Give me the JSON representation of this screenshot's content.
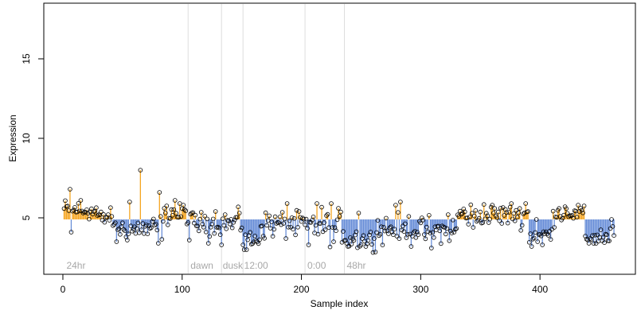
{
  "chart_data": {
    "type": "scatter",
    "title": "",
    "xlabel": "Sample index",
    "ylabel": "Expression",
    "xlim": [
      -16,
      480
    ],
    "ylim": [
      1.45,
      18.5
    ],
    "baseline": 4.9,
    "x_ticks": [
      0,
      100,
      200,
      300,
      400
    ],
    "y_ticks": [
      5,
      10,
      15
    ],
    "grid": false,
    "colors": {
      "above": "#f5a623",
      "below": "#6a8fd8",
      "point_stroke": "#000000",
      "divider": "#dddddd",
      "region_label": "#a8a8a8"
    },
    "dividers": [
      105,
      133,
      151,
      203,
      236
    ],
    "region_labels": [
      {
        "text": "24hr",
        "x": 3
      },
      {
        "text": "dawn",
        "x": 107
      },
      {
        "text": "dusk",
        "x": 134
      },
      {
        "text": "12:00",
        "x": 152
      },
      {
        "text": "0:00",
        "x": 205
      },
      {
        "text": "48hr",
        "x": 238
      }
    ],
    "segments": [
      {
        "x0": 1,
        "x1": 28,
        "base": 5.45,
        "amp": 0.45,
        "hi": [
          [
            6,
            6.8
          ],
          [
            15,
            6.1
          ]
        ],
        "lo": [
          [
            7,
            4.1
          ]
        ]
      },
      {
        "x0": 29,
        "x1": 42,
        "base": 5.0,
        "amp": 0.4,
        "hi": [],
        "lo": []
      },
      {
        "x0": 43,
        "x1": 84,
        "base": 4.3,
        "amp": 0.6,
        "hi": [
          [
            56,
            6.0
          ],
          [
            65,
            8.0
          ],
          [
            81,
            6.6
          ]
        ],
        "lo": [
          [
            45,
            3.5
          ],
          [
            80,
            3.4
          ]
        ]
      },
      {
        "x0": 85,
        "x1": 104,
        "base": 5.3,
        "amp": 0.45,
        "hi": [
          [
            94,
            6.1
          ]
        ],
        "lo": []
      },
      {
        "x0": 105,
        "x1": 132,
        "base": 4.7,
        "amp": 0.5,
        "hi": [
          [
            128,
            5.4
          ]
        ],
        "lo": [
          [
            106,
            3.6
          ],
          [
            122,
            3.4
          ]
        ]
      },
      {
        "x0": 133,
        "x1": 150,
        "base": 4.7,
        "amp": 0.5,
        "hi": [
          [
            148,
            5.3
          ]
        ],
        "lo": [
          [
            133,
            3.3
          ]
        ]
      },
      {
        "x0": 151,
        "x1": 165,
        "base": 3.6,
        "amp": 0.4,
        "hi": [],
        "lo": [
          [
            152,
            3.0
          ],
          [
            154,
            3.0
          ]
        ]
      },
      {
        "x0": 166,
        "x1": 202,
        "base": 4.6,
        "amp": 0.6,
        "hi": [
          [
            188,
            5.9
          ]
        ],
        "lo": []
      },
      {
        "x0": 203,
        "x1": 235,
        "base": 4.5,
        "amp": 0.8,
        "hi": [
          [
            213,
            5.9
          ],
          [
            225,
            5.9
          ]
        ],
        "lo": [
          [
            206,
            3.3
          ],
          [
            227,
            3.5
          ]
        ]
      },
      {
        "x0": 236,
        "x1": 262,
        "base": 3.7,
        "amp": 0.5,
        "hi": [
          [
            248,
            5.3
          ]
        ],
        "lo": [
          [
            239,
            3.2
          ],
          [
            254,
            3.2
          ]
        ]
      },
      {
        "x0": 263,
        "x1": 299,
        "base": 4.3,
        "amp": 0.6,
        "hi": [
          [
            279,
            5.8
          ],
          [
            283,
            6.0
          ]
        ],
        "lo": [
          [
            292,
            3.2
          ]
        ]
      },
      {
        "x0": 300,
        "x1": 330,
        "base": 4.2,
        "amp": 0.6,
        "hi": [
          [
            323,
            5.2
          ]
        ],
        "lo": [
          [
            309,
            3.1
          ]
        ]
      },
      {
        "x0": 331,
        "x1": 390,
        "base": 5.2,
        "amp": 0.5,
        "hi": [
          [
            376,
            5.9
          ],
          [
            388,
            5.9
          ]
        ],
        "lo": [
          [
            344,
            4.4
          ]
        ]
      },
      {
        "x0": 391,
        "x1": 410,
        "base": 3.9,
        "amp": 0.5,
        "hi": [
          [
            397,
            4.9
          ]
        ],
        "lo": [
          [
            393,
            3.2
          ],
          [
            402,
            3.3
          ]
        ]
      },
      {
        "x0": 411,
        "x1": 437,
        "base": 5.3,
        "amp": 0.35,
        "hi": [
          [
            421,
            5.7
          ]
        ],
        "lo": [
          [
            412,
            4.4
          ]
        ]
      },
      {
        "x0": 438,
        "x1": 462,
        "base": 3.8,
        "amp": 0.45,
        "hi": [
          [
            460,
            4.9
          ]
        ],
        "lo": [
          [
            441,
            3.4
          ]
        ]
      }
    ]
  }
}
